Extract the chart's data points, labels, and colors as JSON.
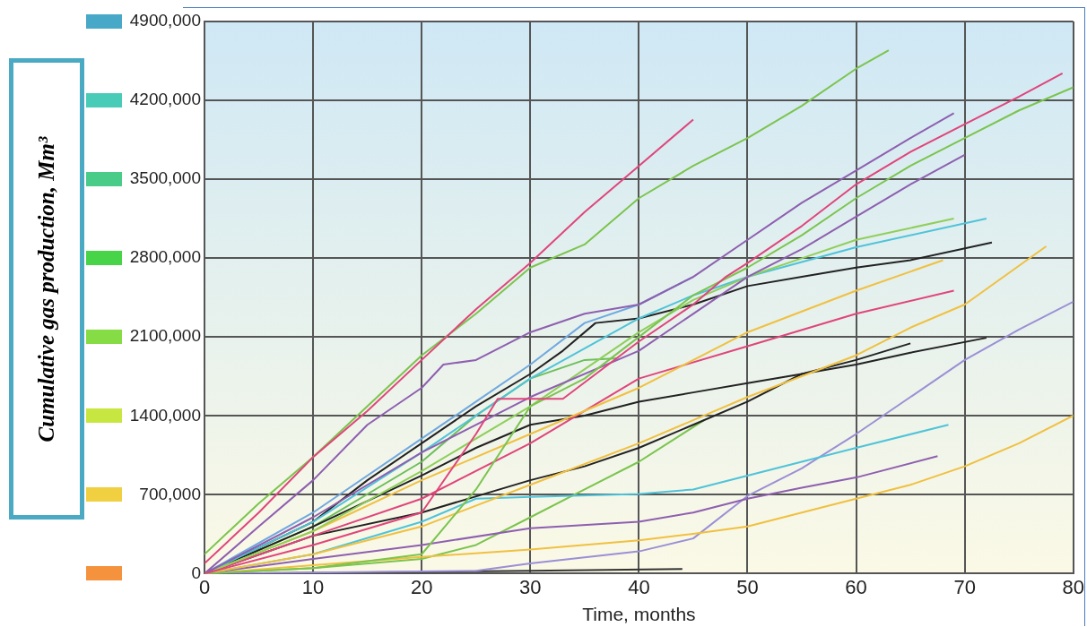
{
  "chart_data": {
    "type": "line",
    "xlabel": "Time, months",
    "ylabel": "Cumulative gas production, Mm³",
    "xlim": [
      0,
      80
    ],
    "xticks": [
      0,
      10,
      20,
      30,
      40,
      50,
      60,
      70,
      80
    ],
    "ylim": [
      0,
      4900000
    ],
    "yticks": [
      0,
      {
        "value": 700000,
        "label": "700,000"
      },
      {
        "value": 1400000,
        "label": "1400,000"
      },
      {
        "value": 2100000,
        "label": "2100,000"
      },
      {
        "value": 2800000,
        "label": "2800,000"
      },
      {
        "value": 3500000,
        "label": "3500,000"
      },
      {
        "value": 4200000,
        "label": "4200,000"
      },
      {
        "value": 4900000,
        "label": "4900,000"
      }
    ],
    "grid": true,
    "legend": false,
    "marker": "none",
    "line_style": "solid",
    "series": [
      {
        "color": "#e0457b",
        "x": [
          0,
          5,
          10,
          15,
          20,
          25,
          30,
          35,
          40,
          45
        ],
        "values": [
          90000,
          542000,
          1034000,
          1444000,
          1896000,
          2347000,
          2757000,
          3209000,
          3619000,
          4029000
        ]
      },
      {
        "color": "#7cc44e",
        "x": [
          0,
          5,
          10,
          15,
          20,
          25,
          30,
          35,
          40,
          45,
          50,
          55,
          60,
          63
        ],
        "values": [
          172000,
          624000,
          1034000,
          1485000,
          1937000,
          2306000,
          2716000,
          2921000,
          3332000,
          3619000,
          3865000,
          4152000,
          4481000,
          4645000
        ]
      },
      {
        "color": "#e0457b",
        "x": [
          0,
          10,
          20,
          25,
          27,
          33,
          40,
          45,
          48,
          50,
          55,
          60,
          65,
          70,
          75,
          79
        ],
        "values": [
          0,
          254000,
          542000,
          1239000,
          1551000,
          1551000,
          2060000,
          2388000,
          2634000,
          2757000,
          3085000,
          3455000,
          3742000,
          3988000,
          4234000,
          4440000
        ]
      },
      {
        "color": "#7cc44e",
        "x": [
          0,
          10,
          20,
          25,
          30,
          35,
          40,
          45,
          50,
          55,
          60,
          65,
          70,
          75,
          80
        ],
        "values": [
          0,
          49000,
          172000,
          747000,
          1485000,
          1731000,
          2101000,
          2470000,
          2716000,
          3003000,
          3332000,
          3619000,
          3865000,
          4111000,
          4316000
        ]
      },
      {
        "color": "#8e5fb0",
        "x": [
          0,
          5,
          10,
          15,
          20,
          22,
          25,
          30,
          35,
          40,
          45,
          50,
          55,
          60,
          65,
          69
        ],
        "values": [
          0,
          418000,
          829000,
          1321000,
          1649000,
          1855000,
          1896000,
          2142000,
          2306000,
          2388000,
          2634000,
          2962000,
          3291000,
          3578000,
          3865000,
          4087000
        ]
      },
      {
        "color": "#8e5fb0",
        "x": [
          0,
          10,
          20,
          30,
          40,
          45,
          50,
          55,
          60,
          65,
          70
        ],
        "values": [
          0,
          500000,
          1075000,
          1567000,
          1978000,
          2306000,
          2634000,
          2880000,
          3168000,
          3455000,
          3717000
        ]
      },
      {
        "color": "#8fcf5a",
        "x": [
          0,
          10,
          20,
          30,
          40,
          45,
          50,
          55,
          60,
          69
        ],
        "values": [
          0,
          377000,
          911000,
          1485000,
          2142000,
          2429000,
          2634000,
          2798000,
          2962000,
          3151000
        ]
      },
      {
        "color": "#4fc3d9",
        "x": [
          0,
          10,
          20,
          30,
          40,
          45,
          50,
          60,
          72
        ],
        "values": [
          0,
          460000,
          1075000,
          1731000,
          2265000,
          2470000,
          2634000,
          2897000,
          3151000
        ]
      },
      {
        "color": "#222222",
        "x": [
          0,
          10,
          15,
          20,
          25,
          30,
          33,
          36,
          40,
          45,
          50,
          55,
          60,
          65,
          72.5
        ],
        "values": [
          0,
          460000,
          829000,
          1157000,
          1485000,
          1772000,
          1978000,
          2224000,
          2265000,
          2388000,
          2552000,
          2634000,
          2716000,
          2782000,
          2938000
        ]
      },
      {
        "color": "#f0c040",
        "x": [
          0,
          10,
          20,
          30,
          40,
          50,
          60,
          68
        ],
        "values": [
          0,
          377000,
          829000,
          1239000,
          1649000,
          2142000,
          2511000,
          2782000
        ]
      },
      {
        "color": "#e0457b",
        "x": [
          0,
          10,
          20,
          30,
          40,
          50,
          60,
          69
        ],
        "values": [
          0,
          336000,
          665000,
          1157000,
          1731000,
          2019000,
          2306000,
          2511000
        ]
      },
      {
        "color": "#f0c040",
        "x": [
          0,
          10,
          20,
          30,
          40,
          50,
          60,
          65,
          70,
          77.5
        ],
        "values": [
          0,
          172000,
          418000,
          788000,
          1157000,
          1567000,
          1937000,
          2183000,
          2388000,
          2905000
        ]
      },
      {
        "color": "#222222",
        "x": [
          0,
          10,
          20,
          30,
          35,
          40,
          45,
          50,
          55,
          60,
          65
        ],
        "values": [
          0,
          336000,
          542000,
          829000,
          952000,
          1116000,
          1321000,
          1526000,
          1772000,
          1896000,
          2043000
        ]
      },
      {
        "color": "#222222",
        "x": [
          0,
          10,
          20,
          25,
          30,
          35,
          40,
          45,
          50,
          55,
          60,
          65,
          72
        ],
        "values": [
          0,
          418000,
          870000,
          1116000,
          1321000,
          1403000,
          1526000,
          1608000,
          1690000,
          1772000,
          1855000,
          1961000,
          2093000
        ]
      },
      {
        "color": "#4fc3d9",
        "x": [
          0,
          10,
          20,
          25,
          30,
          40,
          45,
          50,
          55,
          60,
          68.5
        ],
        "values": [
          0,
          172000,
          460000,
          665000,
          681000,
          706000,
          747000,
          870000,
          993000,
          1116000,
          1321000
        ]
      },
      {
        "color": "#8e5fb0",
        "x": [
          0,
          10,
          20,
          30,
          40,
          45,
          50,
          55,
          60,
          67.5
        ],
        "values": [
          0,
          131000,
          254000,
          402000,
          460000,
          542000,
          665000,
          763000,
          853000,
          1042000
        ]
      },
      {
        "color": "#f0c040",
        "x": [
          0,
          10,
          20,
          30,
          40,
          45,
          50,
          55,
          60,
          65,
          70,
          75,
          80
        ],
        "values": [
          0,
          74000,
          148000,
          213000,
          295000,
          353000,
          418000,
          542000,
          665000,
          788000,
          952000,
          1157000,
          1403000
        ]
      },
      {
        "color": "#9b8fd6",
        "x": [
          0,
          25,
          30,
          40,
          45,
          50,
          55,
          60,
          65,
          70,
          75,
          80
        ],
        "values": [
          0,
          25000,
          90000,
          197000,
          312000,
          689000,
          935000,
          1239000,
          1567000,
          1896000,
          2166000,
          2413000
        ]
      },
      {
        "color": "#7cc44e",
        "x": [
          0,
          10,
          20,
          25,
          30,
          35,
          40,
          46
        ],
        "values": [
          0,
          49000,
          131000,
          254000,
          500000,
          747000,
          993000,
          1362000
        ]
      },
      {
        "color": "#333333",
        "x": [
          0,
          20,
          30,
          44
        ],
        "values": [
          0,
          16000,
          25000,
          41000
        ]
      },
      {
        "color": "#6cbf5a",
        "x": [
          0,
          10,
          20,
          25,
          30,
          35,
          38
        ],
        "values": [
          0,
          418000,
          993000,
          1403000,
          1731000,
          1896000,
          1912000
        ]
      },
      {
        "color": "#6fa8e0",
        "x": [
          0,
          10,
          20,
          25,
          30,
          35,
          40,
          45
        ],
        "values": [
          0,
          542000,
          1198000,
          1526000,
          1855000,
          2224000,
          2388000,
          2634000
        ]
      }
    ]
  }
}
